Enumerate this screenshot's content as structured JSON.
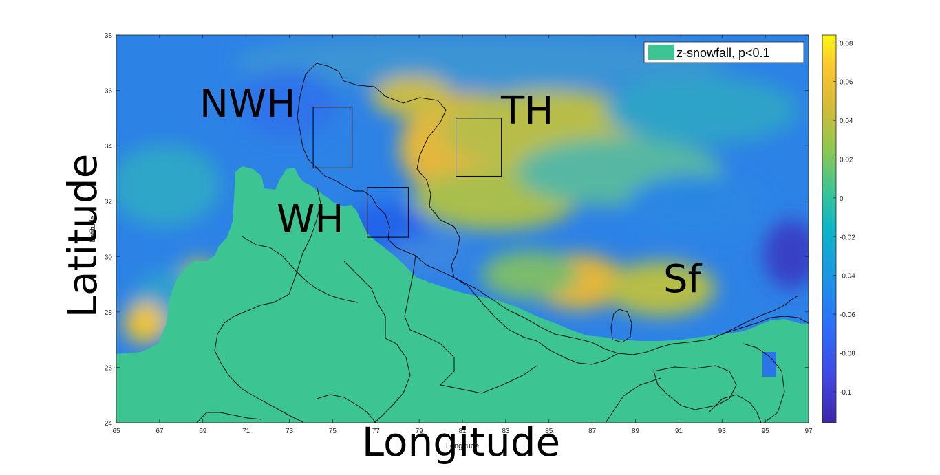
{
  "map": {
    "xlabel": "Longitude",
    "ylabel": "Latitude",
    "xlabel_small": "Longitude",
    "ylabel_small": "Latitude",
    "x_ticks": [
      "65",
      "67",
      "69",
      "71",
      "73",
      "75",
      "77",
      "79",
      "81",
      "83",
      "85",
      "87",
      "89",
      "91",
      "93",
      "95",
      "97"
    ],
    "y_ticks": [
      "24",
      "26",
      "28",
      "30",
      "32",
      "34",
      "36",
      "38"
    ],
    "x_range": [
      65,
      97
    ],
    "y_range": [
      24,
      38
    ],
    "legend": {
      "label": "z-snowfall, p<0.1",
      "swatch_color": "#3cc592"
    },
    "regions": [
      {
        "label": "NWH",
        "box": {
          "lon": [
            74.1,
            75.9
          ],
          "lat": [
            33.2,
            35.4
          ]
        }
      },
      {
        "label": "TH",
        "box": {
          "lon": [
            80.7,
            82.8
          ],
          "lat": [
            32.9,
            35.0
          ]
        }
      },
      {
        "label": "WH",
        "box": {
          "lon": [
            76.6,
            78.5
          ],
          "lat": [
            30.7,
            32.5
          ]
        }
      },
      {
        "label": "Sf",
        "box": null
      }
    ],
    "colorbar": {
      "ticks": [
        "0.08",
        "0.06",
        "0.04",
        "0.02",
        "0",
        "-0.02",
        "-0.04",
        "-0.06",
        "-0.08",
        "-0.1"
      ],
      "range": [
        -0.116,
        0.084
      ],
      "colormap": "parula"
    },
    "colors": {
      "nonsignificant": "#3cc592",
      "blue": "#2a74e8",
      "yellow": "#f2c33a",
      "dark": "#3a3fc4"
    }
  }
}
